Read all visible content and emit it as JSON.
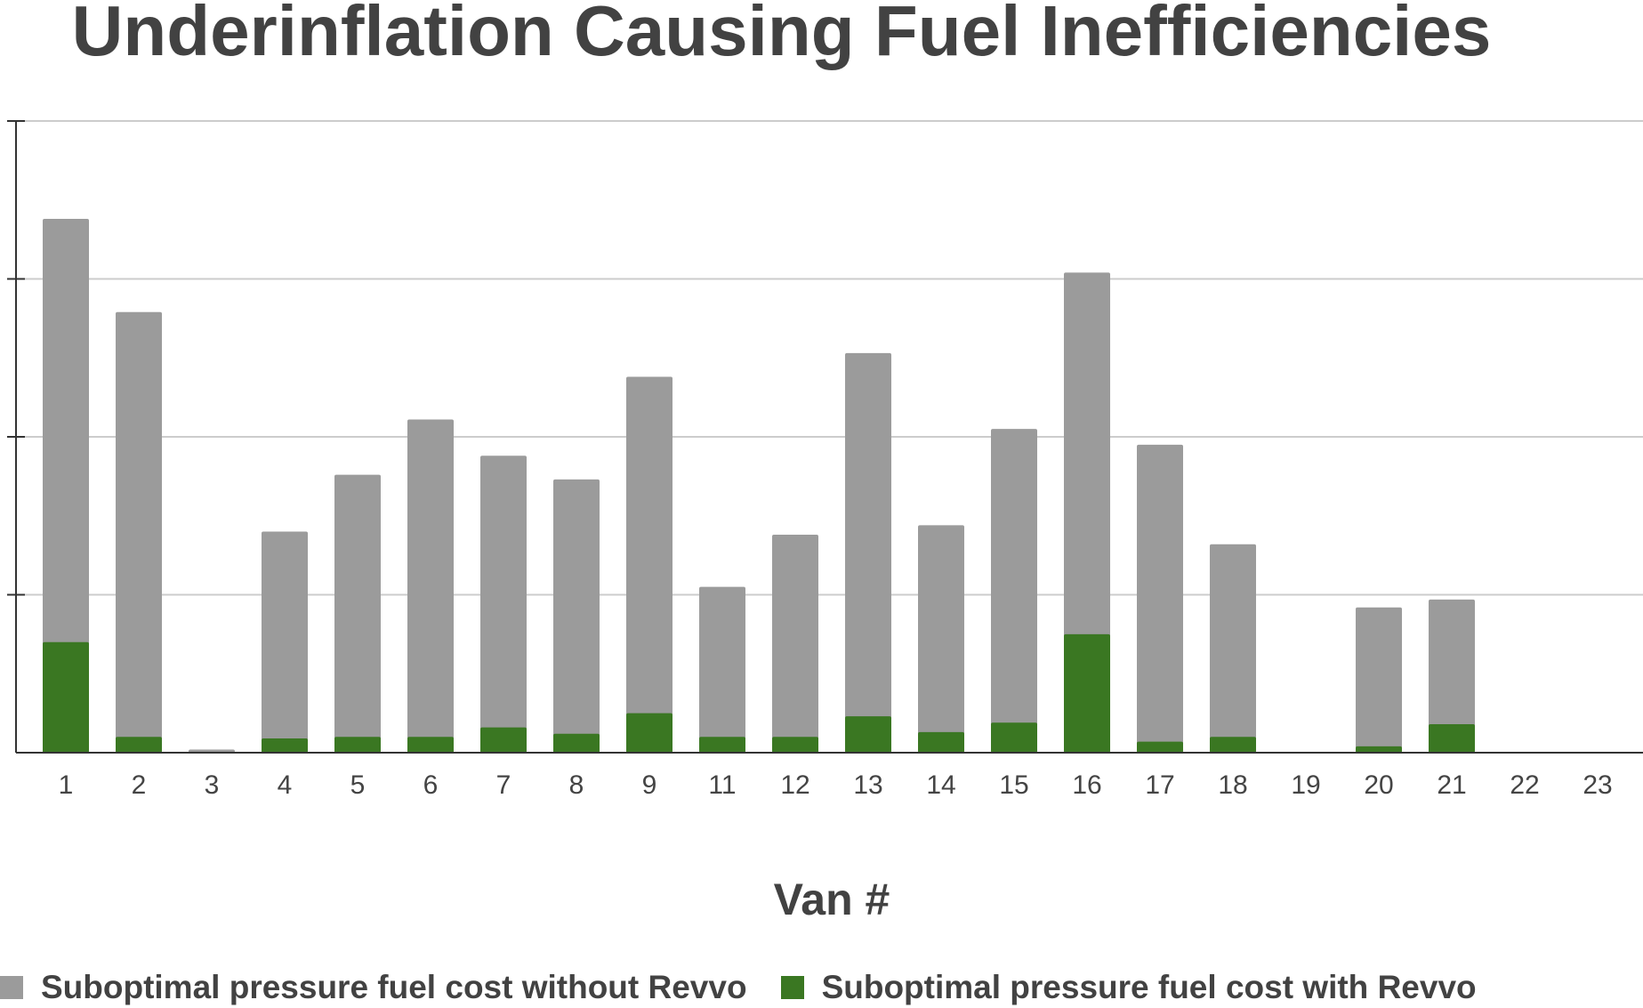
{
  "chart_data": {
    "type": "bar",
    "stacked": false,
    "title": "Underinflation Causing Fuel Inefficiencies",
    "xlabel": "Van #",
    "ylabel": "",
    "y_tick_labels_shown": false,
    "ylim": [
      0,
      4
    ],
    "grid": true,
    "legend_position": "bottom",
    "categories": [
      "1",
      "2",
      "3",
      "4",
      "5",
      "6",
      "7",
      "8",
      "9",
      "11",
      "12",
      "13",
      "14",
      "15",
      "16",
      "17",
      "18",
      "19",
      "20",
      "21",
      "22",
      "23"
    ],
    "series": [
      {
        "name": "Suboptimal pressure fuel cost without Revvo",
        "color": "#9b9b9b",
        "values": [
          3.38,
          2.79,
          0.02,
          1.4,
          1.76,
          2.11,
          1.88,
          1.73,
          2.38,
          1.05,
          1.38,
          2.53,
          1.44,
          2.05,
          3.04,
          1.95,
          1.32,
          0.0,
          0.92,
          0.97,
          0.0,
          0.0
        ]
      },
      {
        "name": "Suboptimal pressure fuel cost with Revvo",
        "color": "#3a7722",
        "values": [
          0.7,
          0.1,
          0.0,
          0.09,
          0.1,
          0.1,
          0.16,
          0.12,
          0.25,
          0.1,
          0.1,
          0.23,
          0.13,
          0.19,
          0.75,
          0.07,
          0.1,
          0.0,
          0.04,
          0.18,
          0.0,
          0.0
        ]
      }
    ]
  }
}
